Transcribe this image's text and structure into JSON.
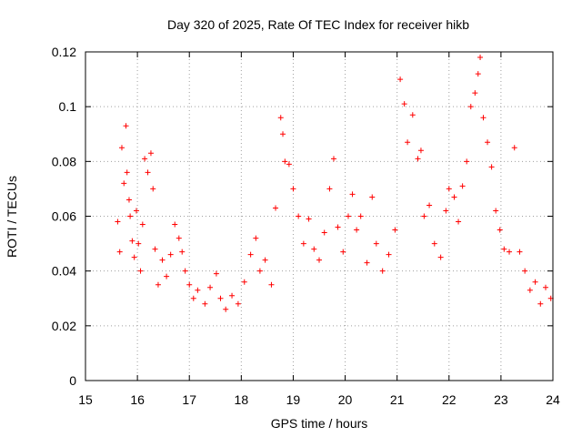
{
  "chart_data": {
    "type": "scatter",
    "title": "Day 320 of 2025, Rate Of TEC Index for receiver hikb",
    "xlabel": "GPS time / hours",
    "ylabel": "ROTI / TECUs",
    "xlim": [
      15,
      24
    ],
    "ylim": [
      0,
      0.12
    ],
    "xticks": [
      "15",
      "16",
      "17",
      "18",
      "19",
      "20",
      "21",
      "22",
      "23",
      "24"
    ],
    "yticks": [
      "0",
      "0.02",
      "0.04",
      "0.06",
      "0.08",
      "0.1",
      "0.12"
    ],
    "grid": true,
    "marker": "plus",
    "color": "#ff0000",
    "series": [
      {
        "x": [
          15.62,
          15.66,
          15.7,
          15.74,
          15.78,
          15.8,
          15.84,
          15.86,
          15.9,
          15.94,
          15.98,
          16.02,
          16.06,
          16.1,
          16.14,
          16.2,
          16.26,
          16.3,
          16.34,
          16.4,
          16.48,
          16.56,
          16.64,
          16.72,
          16.8,
          16.86,
          16.92,
          17.0,
          17.08,
          17.16,
          17.3,
          17.4,
          17.52,
          17.6,
          17.7,
          17.82,
          17.94,
          18.06,
          18.18,
          18.28,
          18.36,
          18.46,
          18.58,
          18.66,
          18.76,
          18.8,
          18.84,
          18.92,
          19.0,
          19.1,
          19.2,
          19.3,
          19.4,
          19.5,
          19.6,
          19.7,
          19.78,
          19.86,
          19.96,
          20.06,
          20.14,
          20.22,
          20.3,
          20.42,
          20.52,
          20.6,
          20.72,
          20.84,
          20.96,
          21.06,
          21.14,
          21.2,
          21.3,
          21.4,
          21.46,
          21.52,
          21.62,
          21.72,
          21.84,
          21.94,
          22.0,
          22.1,
          22.18,
          22.26,
          22.34,
          22.42,
          22.5,
          22.56,
          22.6,
          22.66,
          22.74,
          22.82,
          22.9,
          22.98,
          23.06,
          23.16,
          23.26,
          23.36,
          23.46,
          23.56,
          23.66,
          23.76,
          23.86,
          23.96
        ],
        "y": [
          0.058,
          0.047,
          0.085,
          0.072,
          0.093,
          0.076,
          0.066,
          0.06,
          0.051,
          0.045,
          0.062,
          0.05,
          0.04,
          0.057,
          0.081,
          0.076,
          0.083,
          0.07,
          0.048,
          0.035,
          0.044,
          0.038,
          0.046,
          0.057,
          0.052,
          0.047,
          0.04,
          0.035,
          0.03,
          0.033,
          0.028,
          0.034,
          0.039,
          0.03,
          0.026,
          0.031,
          0.028,
          0.036,
          0.046,
          0.052,
          0.04,
          0.044,
          0.035,
          0.063,
          0.096,
          0.09,
          0.08,
          0.079,
          0.07,
          0.06,
          0.05,
          0.059,
          0.048,
          0.044,
          0.054,
          0.07,
          0.081,
          0.056,
          0.047,
          0.06,
          0.068,
          0.055,
          0.06,
          0.043,
          0.067,
          0.05,
          0.04,
          0.046,
          0.055,
          0.11,
          0.101,
          0.087,
          0.097,
          0.081,
          0.084,
          0.06,
          0.064,
          0.05,
          0.045,
          0.062,
          0.07,
          0.067,
          0.058,
          0.071,
          0.08,
          0.1,
          0.105,
          0.112,
          0.118,
          0.096,
          0.087,
          0.078,
          0.062,
          0.055,
          0.048,
          0.047,
          0.085,
          0.047,
          0.04,
          0.033,
          0.036,
          0.028,
          0.034,
          0.03
        ]
      }
    ]
  }
}
